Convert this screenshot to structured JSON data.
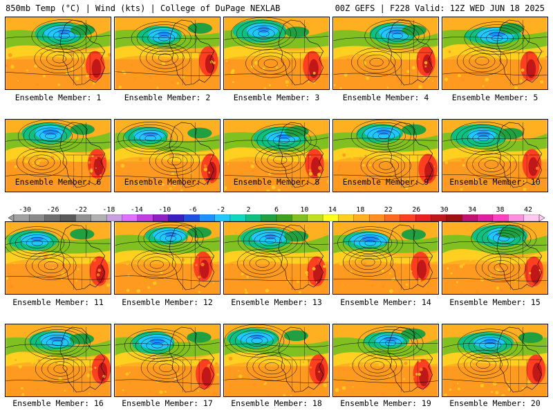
{
  "header": {
    "left": "850mb Temp (°C) | Wind (kts) | College of DuPage NEXLAB",
    "right": "00Z GEFS | F228 Valid: 12Z WED JUN 18 2025"
  },
  "colorbar": {
    "tick_labels": [
      "-30",
      "-26",
      "-22",
      "-18",
      "-14",
      "-10",
      "-6",
      "-2",
      "2",
      "6",
      "10",
      "14",
      "18",
      "22",
      "26",
      "30",
      "34",
      "38",
      "42"
    ],
    "colors": [
      "#a0a0a0",
      "#8a8a8a",
      "#6e6e6e",
      "#5a5a5a",
      "#909090",
      "#b0b0b0",
      "#c8a0e0",
      "#e070ff",
      "#c040e0",
      "#9020c0",
      "#3a20c0",
      "#2050e0",
      "#2090ff",
      "#20c8ff",
      "#10d8c0",
      "#10c080",
      "#20a040",
      "#40a020",
      "#80c020",
      "#c0e020",
      "#ffff20",
      "#ffd020",
      "#ffb020",
      "#ff9020",
      "#ff6820",
      "#ff4020",
      "#e82020",
      "#c01818",
      "#a01010",
      "#c01070",
      "#e020a0",
      "#ff40c0",
      "#ff90e0",
      "#ffc8f0"
    ]
  },
  "members": [
    {
      "label": "Ensemble Member: 1"
    },
    {
      "label": "Ensemble Member: 2"
    },
    {
      "label": "Ensemble Member: 3"
    },
    {
      "label": "Ensemble Member: 4"
    },
    {
      "label": "Ensemble Member: 5"
    },
    {
      "label": "Ensemble Member: 6"
    },
    {
      "label": "Ensemble Member: 7"
    },
    {
      "label": "Ensemble Member: 8"
    },
    {
      "label": "Ensemble Member: 9"
    },
    {
      "label": "Ensemble Member: 10"
    },
    {
      "label": "Ensemble Member: 11"
    },
    {
      "label": "Ensemble Member: 12"
    },
    {
      "label": "Ensemble Member: 13"
    },
    {
      "label": "Ensemble Member: 14"
    },
    {
      "label": "Ensemble Member: 15"
    },
    {
      "label": "Ensemble Member: 16"
    },
    {
      "label": "Ensemble Member: 17"
    },
    {
      "label": "Ensemble Member: 18"
    },
    {
      "label": "Ensemble Member: 19"
    },
    {
      "label": "Ensemble Member: 20"
    }
  ]
}
